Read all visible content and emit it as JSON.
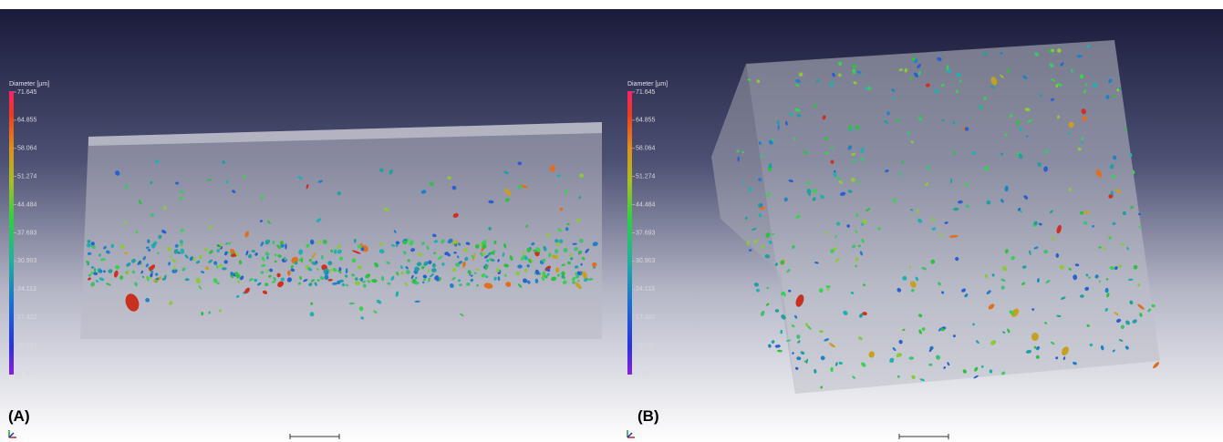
{
  "panels": [
    {
      "label": "(A)",
      "colorbar": {
        "title": "Diameter [µm]",
        "ticks": [
          "71.645",
          "64.855",
          "58.064",
          "51.274",
          "44.484",
          "37.693",
          "30.903",
          "24.113",
          "17.322",
          "10.532",
          "3.742"
        ]
      }
    },
    {
      "label": "(B)",
      "colorbar": {
        "title": "Diameter [µm]",
        "ticks": [
          "71.645",
          "64.855",
          "58.064",
          "51.274",
          "44.484",
          "37.693",
          "30.903",
          "24.113",
          "17.322",
          "10.532",
          "3.742"
        ]
      }
    }
  ]
}
